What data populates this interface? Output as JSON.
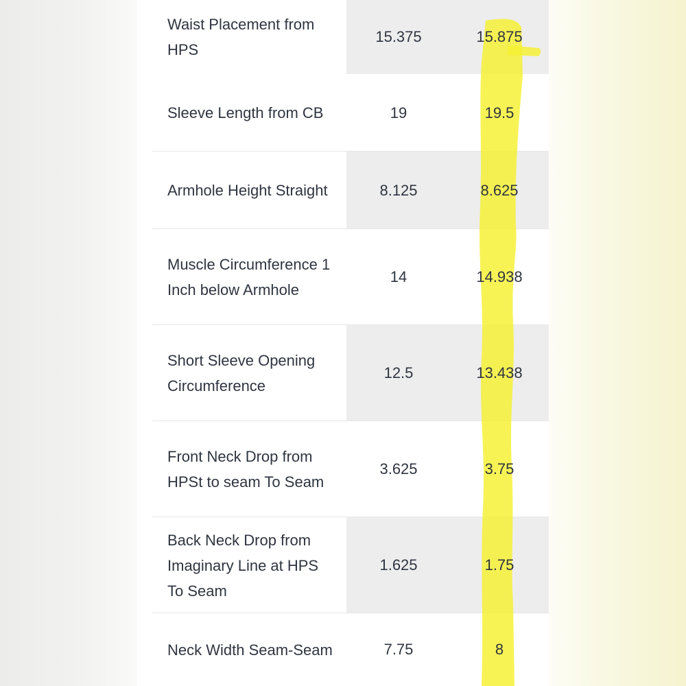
{
  "table": {
    "rows": [
      {
        "label": "Waist Placement from HPS",
        "v1": "15.375",
        "v2": "15.875"
      },
      {
        "label": "Sleeve Length from CB",
        "v1": "19",
        "v2": "19.5"
      },
      {
        "label": "Armhole Height Straight",
        "v1": "8.125",
        "v2": "8.625"
      },
      {
        "label": "Muscle Circumference 1 Inch below Armhole",
        "v1": "14",
        "v2": "14.938"
      },
      {
        "label": "Short Sleeve Opening Circumference",
        "v1": "12.5",
        "v2": "13.438"
      },
      {
        "label": "Front Neck Drop from HPSt to seam To Seam",
        "v1": "3.625",
        "v2": "3.75"
      },
      {
        "label": "Back Neck Drop from Imaginary Line at HPS To Seam",
        "v1": "1.625",
        "v2": "1.75"
      },
      {
        "label": "Neck Width Seam-Seam",
        "v1": "7.75",
        "v2": "8"
      }
    ]
  },
  "highlight": {
    "color": "#f5f030"
  }
}
